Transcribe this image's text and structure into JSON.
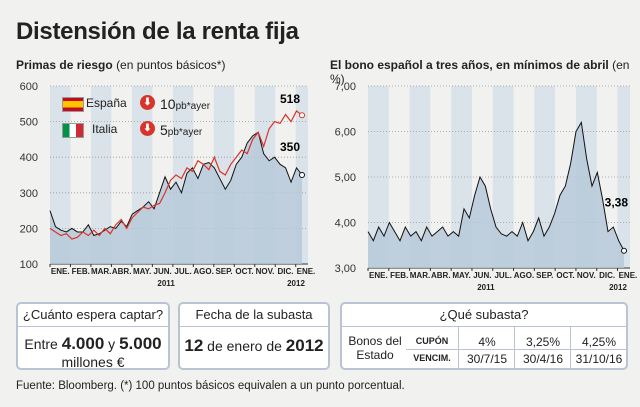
{
  "title": "Distensión de la renta fija",
  "left_title_bold": "Primas de riesgo",
  "left_title_normal": "(en puntos básicos*)",
  "right_title_bold": "El bono español a tres años, en mínimos de abril",
  "right_title_normal": "(en %)",
  "legend": {
    "spain_label": "España",
    "spain_change": "10",
    "spain_unit": "pb*ayer",
    "italy_label": "Italia",
    "italy_change": "5",
    "italy_unit": "pb*ayer"
  },
  "colors": {
    "spain": "#d8342a",
    "italy": "#111111",
    "area": "#b4c7d8",
    "band": "#dbe3ea"
  },
  "months": [
    "ENE.",
    "FEB.",
    "MAR.",
    "ABR.",
    "MAY.",
    "JUN.",
    "JUL.",
    "AGO.",
    "SEP.",
    "OCT.",
    "NOV.",
    "DIC.",
    "ENE."
  ],
  "year_2011": "2011",
  "year_2012": "2012",
  "chart_data": [
    {
      "type": "line",
      "title": "Primas de riesgo",
      "ylim": [
        100,
        600
      ],
      "yticks": [
        "100",
        "200",
        "300",
        "400",
        "500",
        "600"
      ],
      "callouts": {
        "spain_last": "518",
        "italy_last": "350"
      },
      "series": [
        {
          "name": "España",
          "values": [
            200,
            190,
            180,
            185,
            170,
            175,
            190,
            180,
            195,
            180,
            200,
            185,
            210,
            225,
            200,
            230,
            245,
            260,
            255,
            265,
            270,
            300,
            335,
            350,
            340,
            370,
            360,
            390,
            380,
            365,
            400,
            360,
            350,
            380,
            400,
            420,
            410,
            450,
            470,
            430,
            480,
            500,
            495,
            520,
            500,
            530,
            518
          ]
        },
        {
          "name": "Italia",
          "values": [
            250,
            205,
            195,
            190,
            200,
            190,
            190,
            210,
            180,
            185,
            195,
            205,
            200,
            220,
            205,
            240,
            250,
            260,
            275,
            255,
            300,
            345,
            310,
            330,
            300,
            355,
            370,
            340,
            380,
            385,
            370,
            340,
            310,
            335,
            380,
            400,
            440,
            460,
            470,
            410,
            390,
            400,
            380,
            370,
            330,
            370,
            350
          ]
        }
      ]
    },
    {
      "type": "area",
      "title": "El bono español a tres años, en mínimos de abril",
      "ylim": [
        3.0,
        7.0
      ],
      "yticks": [
        "3,00",
        "4,00",
        "5,00",
        "6,00",
        "7,00"
      ],
      "callouts": {
        "last": "3,38"
      },
      "series": [
        {
          "name": "Bono 3 años",
          "values": [
            3.8,
            3.6,
            3.9,
            3.7,
            4.0,
            3.8,
            3.6,
            3.9,
            3.7,
            3.8,
            3.6,
            3.9,
            3.7,
            3.8,
            3.9,
            3.7,
            3.8,
            3.7,
            4.3,
            4.1,
            4.6,
            5.0,
            4.8,
            4.3,
            3.9,
            3.75,
            3.7,
            3.8,
            3.7,
            4.0,
            3.6,
            3.8,
            4.1,
            3.7,
            3.9,
            4.2,
            4.6,
            4.8,
            5.3,
            6.0,
            6.2,
            5.4,
            4.8,
            5.1,
            4.5,
            3.8,
            3.9,
            3.6,
            3.38
          ]
        }
      ]
    }
  ],
  "box1": {
    "header": "¿Cuánto espera captar?",
    "line_pre": "Entre",
    "amount1": "4.000",
    "line_mid": "y",
    "amount2": "5.000",
    "line2": "millones €"
  },
  "box2": {
    "header": "Fecha de la subasta",
    "day": "12",
    "text_mid": "de enero de",
    "year": "2012"
  },
  "box3": {
    "header": "¿Qué subasta?",
    "row_label1": "Bonos del",
    "row_label2": "Estado",
    "cupon_label": "CUPÓN",
    "vencim_label": "VENCIM.",
    "cupons": [
      "4%",
      "3,25%",
      "4,25%"
    ],
    "vencims": [
      "30/7/15",
      "30/4/16",
      "31/10/16"
    ]
  },
  "source": "Fuente: Bloomberg. (*) 100 puntos básicos equivalen a un punto porcentual."
}
